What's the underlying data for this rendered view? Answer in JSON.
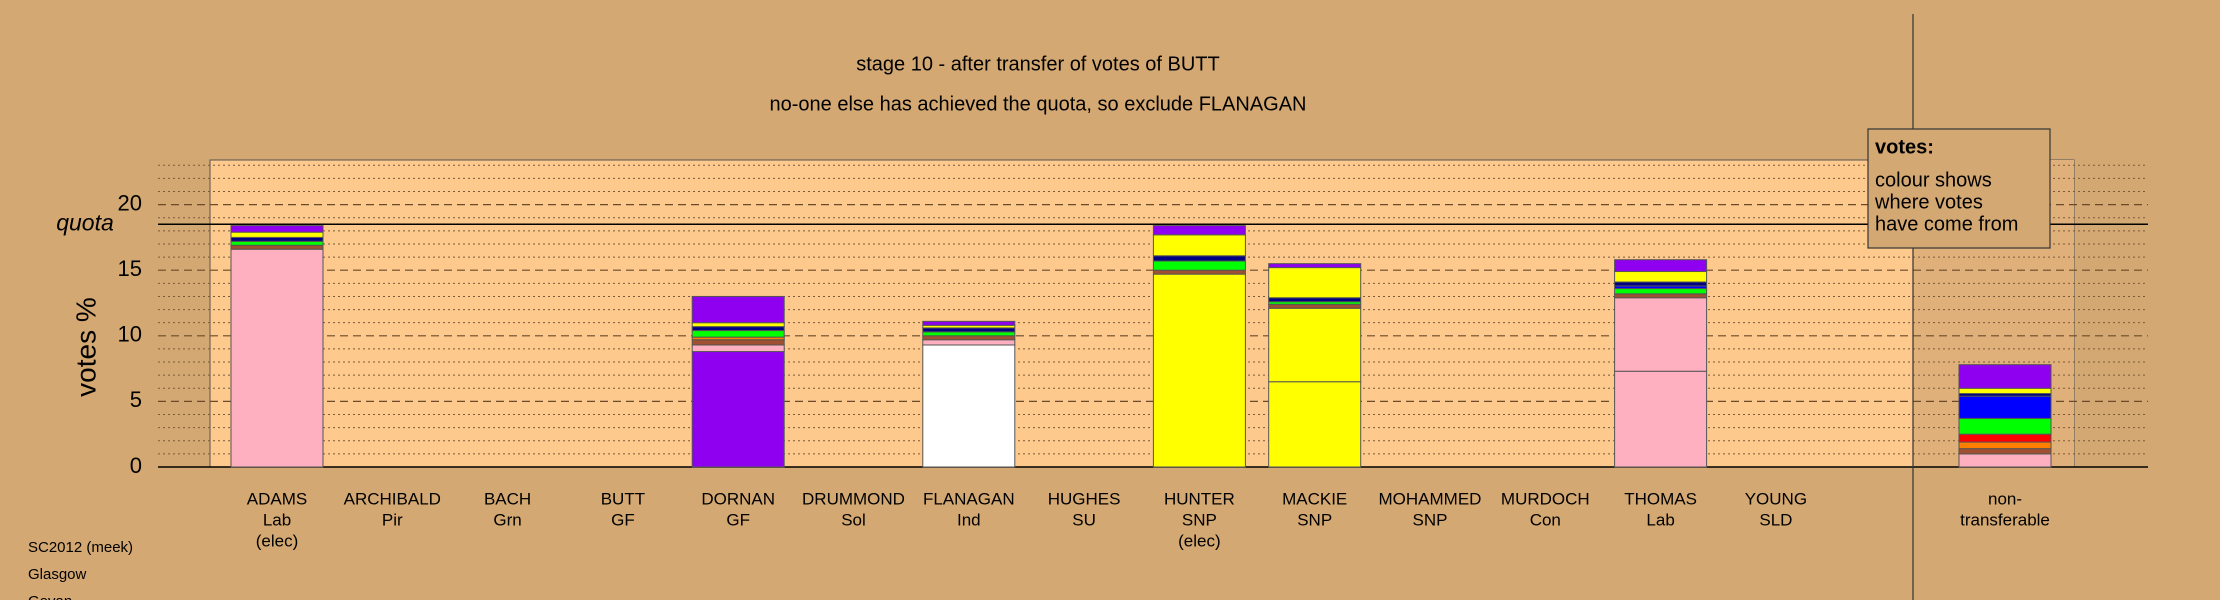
{
  "chart_data": {
    "type": "stacked-bar",
    "title": "stage 10 - after transfer of votes of BUTT",
    "subtitle": "no-one else has achieved the quota, so exclude FLANAGAN",
    "y_label": "votes %",
    "quota_label": "quota",
    "quota": 18.5,
    "categories": [
      [
        "ADAMS",
        "Lab",
        "(elec)"
      ],
      [
        "ARCHIBALD",
        "Pir"
      ],
      [
        "BACH",
        "Grn"
      ],
      [
        "BUTT",
        "GF"
      ],
      [
        "DORNAN",
        "GF"
      ],
      [
        "DRUMMOND",
        "Sol"
      ],
      [
        "FLANAGAN",
        "Ind"
      ],
      [
        "HUGHES",
        "SU"
      ],
      [
        "HUNTER",
        "SNP",
        "(elec)"
      ],
      [
        "MACKIE",
        "SNP"
      ],
      [
        "MOHAMMED",
        "SNP"
      ],
      [
        "MURDOCH",
        "Con"
      ],
      [
        "THOMAS",
        "Lab"
      ],
      [
        "YOUNG",
        "SLD"
      ],
      [
        "non-",
        "transferable"
      ]
    ],
    "series": [
      {
        "colors": [
          "#ffb0c0",
          "#ffb0c0",
          "#00ff00",
          "#9000f0",
          "#9000f0",
          "#ff8000",
          "#ffffff",
          "#ff0000",
          "#ffff00",
          "#ffff00",
          "#ffff00",
          "#0000ff",
          "#ffb0c0",
          "#ff8000",
          "#ffb0c0"
        ],
        "values": [
          16.6,
          0,
          0,
          0,
          8.8,
          0,
          9.3,
          0,
          14.7,
          6.5,
          0,
          0,
          7.3,
          0,
          1.0
        ]
      },
      {
        "color": "#ffb0c0",
        "values": [
          0,
          0,
          0,
          0,
          0.5,
          0,
          0.4,
          0,
          0,
          0,
          0,
          0,
          5.6,
          0,
          0
        ]
      },
      {
        "color": "#ffff00",
        "values": [
          0,
          0,
          0,
          0,
          0,
          0,
          0,
          0,
          0,
          5.6,
          0,
          0,
          0,
          0,
          0
        ]
      },
      {
        "color": "#a05030",
        "values": [
          0.3,
          0,
          0,
          0,
          0.4,
          0,
          0.3,
          0,
          0.3,
          0.3,
          0,
          0,
          0.3,
          0,
          0.4
        ]
      },
      {
        "color": "#ff8000",
        "values": [
          0,
          0,
          0,
          0,
          0.2,
          0,
          0,
          0,
          0,
          0,
          0,
          0,
          0,
          0,
          0.5
        ]
      },
      {
        "color": "#ff0000",
        "values": [
          0,
          0,
          0,
          0,
          0,
          0,
          0,
          0,
          0,
          0,
          0,
          0,
          0,
          0,
          0.6
        ]
      },
      {
        "color": "#00ff00",
        "values": [
          0.3,
          0,
          0,
          0,
          0.5,
          0,
          0.3,
          0,
          0.7,
          0.2,
          0,
          0,
          0.4,
          0,
          1.2
        ]
      },
      {
        "color": "#0000ff",
        "values": [
          0,
          0,
          0,
          0,
          0,
          0,
          0,
          0,
          0,
          0,
          0,
          0,
          0.2,
          0,
          1.7
        ]
      },
      {
        "color": "#000080",
        "values": [
          0.3,
          0,
          0,
          0,
          0.3,
          0,
          0.3,
          0,
          0.4,
          0.3,
          0,
          0,
          0.3,
          0,
          0.2
        ]
      },
      {
        "color": "#ffff00",
        "values": [
          0.4,
          0,
          0,
          0,
          0.3,
          0,
          0.2,
          0,
          1.6,
          2.3,
          0,
          0,
          0.8,
          0,
          0.4
        ]
      },
      {
        "color": "#9000f0",
        "values": [
          0.5,
          0,
          0,
          0,
          2.0,
          0,
          0.3,
          0,
          0.7,
          0.3,
          0,
          0,
          0.9,
          0,
          1.8
        ]
      }
    ],
    "ylim": [
      0,
      23.4
    ],
    "yticks": [
      0,
      5,
      10,
      15,
      20
    ],
    "minor_yticks": [
      1,
      2,
      3,
      4,
      6,
      7,
      8,
      9,
      11,
      12,
      13,
      14,
      16,
      17,
      18,
      19,
      21,
      22,
      23
    ],
    "grid": true,
    "legend": {
      "title": "votes:",
      "lines": [
        "colour shows",
        "where votes",
        "have come from"
      ]
    },
    "footnotes": [
      "SC2012 (meek)",
      "Glasgow",
      "Govan"
    ]
  }
}
